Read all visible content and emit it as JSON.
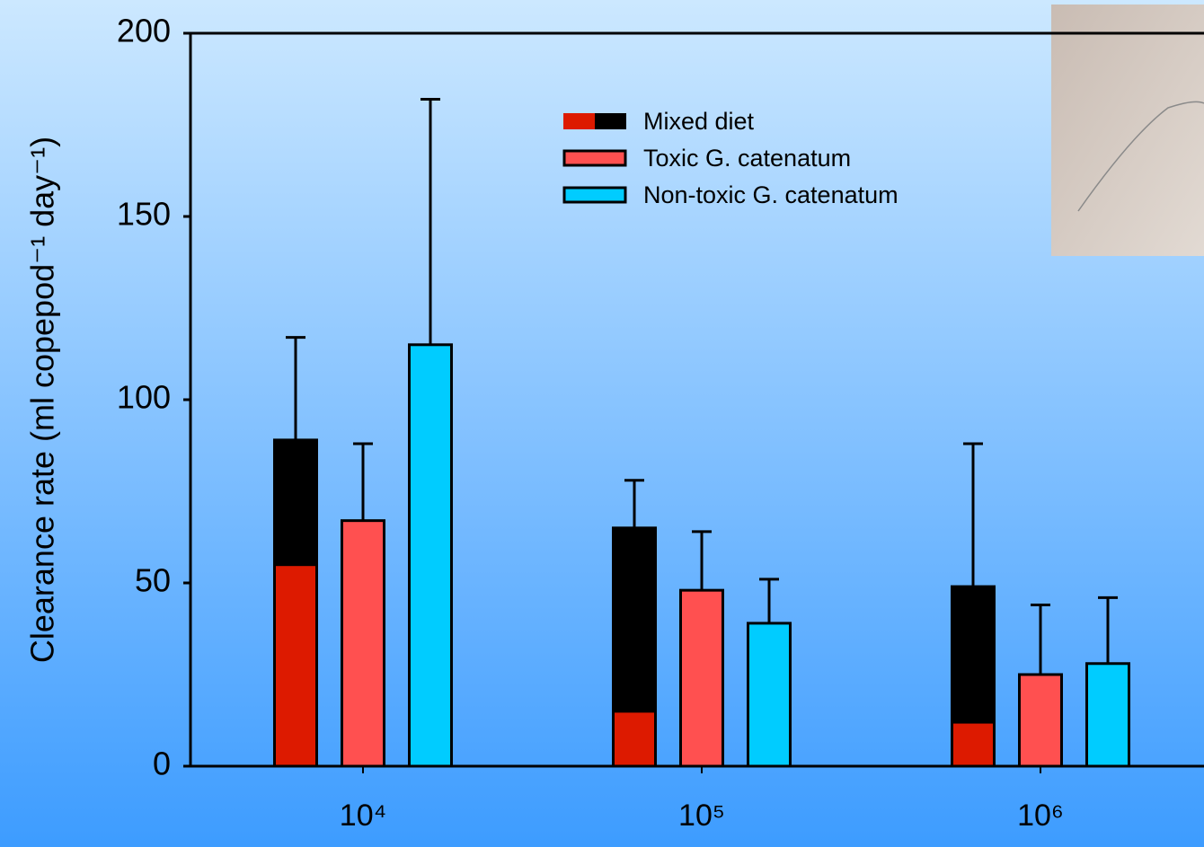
{
  "chart_data": {
    "type": "bar",
    "y_label": "Clearance rate (ml copepod⁻¹ day⁻¹)",
    "categories": [
      "10⁴",
      "10⁵",
      "10⁶"
    ],
    "ylim": [
      0,
      200
    ],
    "yticks": [
      0,
      50,
      100,
      150,
      200
    ],
    "series": [
      {
        "name": "Mixed diet",
        "colors": [
          "#dd1a00",
          "#000000"
        ],
        "values": [
          [
            55,
            34
          ],
          [
            15,
            50
          ],
          [
            12,
            37
          ]
        ],
        "errors": [
          28,
          13,
          39
        ]
      },
      {
        "name": "Toxic G. catenatum",
        "color": "#ff5050",
        "values": [
          67,
          48,
          25
        ],
        "errors": [
          21,
          16,
          19
        ]
      },
      {
        "name": "Non-toxic  G. catenatum",
        "color": "#00ccff",
        "values": [
          115,
          39,
          28
        ],
        "errors": [
          67,
          12,
          18
        ]
      }
    ]
  }
}
